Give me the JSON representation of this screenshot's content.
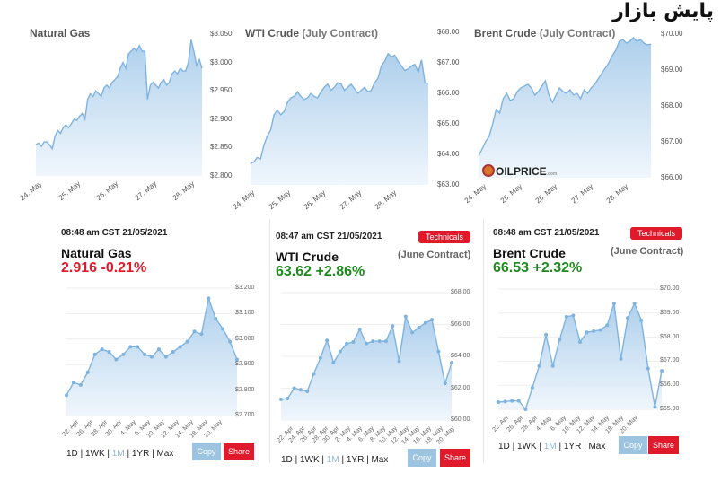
{
  "page": {
    "headline": "پایش بازار",
    "logo_text": "OILPRICE",
    "logo_suffix": ".com"
  },
  "colors": {
    "line": "#7fb3df",
    "fill_top": "#a9cdeb",
    "fill_bottom": "#eef5fc",
    "red": "#e0192b",
    "green": "#1f8b1f"
  },
  "chart_data": [
    {
      "type": "area",
      "title": "Natural Gas",
      "x_tick_labels": [
        "24. May",
        "25. May",
        "26. May",
        "27. May",
        "28. May"
      ],
      "y_tick_labels": [
        "$3.050",
        "$3.000",
        "$2.950",
        "$2.900",
        "$2.850",
        "$2.800"
      ],
      "ylim": [
        2.8,
        3.05
      ],
      "values": [
        2.855,
        2.858,
        2.852,
        2.86,
        2.86,
        2.855,
        2.848,
        2.87,
        2.88,
        2.875,
        2.885,
        2.89,
        2.885,
        2.892,
        2.9,
        2.898,
        2.905,
        2.91,
        2.9,
        2.935,
        2.945,
        2.94,
        2.95,
        2.945,
        2.94,
        2.955,
        2.96,
        2.955,
        2.965,
        2.97,
        2.975,
        2.99,
        3.0,
        2.99,
        3.015,
        3.02,
        3.025,
        3.02,
        3.03,
        3.02,
        3.02,
        2.935,
        2.96,
        2.965,
        2.96,
        2.955,
        2.965,
        2.97,
        2.96,
        2.965,
        2.98,
        2.985,
        2.98,
        2.99,
        2.985,
        2.985,
        3.0,
        3.04,
        3.02,
        2.995,
        3.005,
        2.99
      ]
    },
    {
      "type": "area",
      "title": "WTI Crude",
      "subtitle": "(July Contract)",
      "x_tick_labels": [
        "24. May",
        "25. May",
        "26. May",
        "27. May",
        "28. May"
      ],
      "y_tick_labels": [
        "$68.00",
        "$67.00",
        "$66.00",
        "$65.00",
        "$64.00",
        "$63.00"
      ],
      "ylim": [
        63,
        68
      ],
      "values": [
        63.7,
        63.75,
        63.9,
        63.85,
        64.3,
        64.6,
        64.8,
        65.3,
        65.45,
        65.3,
        65.4,
        65.7,
        65.85,
        65.9,
        66.05,
        65.9,
        65.8,
        65.85,
        66.0,
        65.9,
        65.85,
        66.05,
        66.2,
        66.3,
        66.1,
        66.2,
        66.35,
        66.3,
        66.1,
        66.2,
        66.3,
        66.15,
        66.0,
        66.1,
        66.2,
        66.05,
        66.1,
        66.35,
        66.5,
        66.9,
        67.05,
        67.3,
        67.2,
        67.25,
        67.05,
        66.9,
        66.75,
        66.8,
        66.9,
        66.95,
        66.7,
        67.1,
        66.35,
        66.32
      ]
    },
    {
      "type": "area",
      "title": "Brent Crude",
      "subtitle": "(July Contract)",
      "x_tick_labels": [
        "24. May",
        "25. May",
        "26. May",
        "27. May",
        "28. May"
      ],
      "y_tick_labels": [
        "$70.00",
        "$69.00",
        "$68.00",
        "$67.00",
        "$66.00"
      ],
      "ylim": [
        66,
        70
      ],
      "values": [
        66.6,
        66.8,
        67.0,
        67.15,
        67.5,
        67.9,
        67.8,
        68.2,
        68.35,
        68.15,
        68.2,
        68.4,
        68.5,
        68.55,
        68.6,
        68.5,
        68.3,
        68.4,
        68.55,
        68.7,
        68.3,
        68.1,
        68.3,
        68.5,
        68.4,
        68.35,
        68.45,
        68.3,
        68.35,
        68.2,
        68.45,
        68.35,
        68.5,
        68.6,
        68.75,
        68.9,
        69.05,
        69.2,
        69.4,
        69.55,
        69.8,
        69.85,
        69.75,
        69.8,
        69.9,
        69.8,
        69.85,
        69.75,
        69.7,
        69.72
      ]
    },
    {
      "type": "area",
      "title": "Natural Gas",
      "timestamp": "08:48 am CST 21/05/2021",
      "price": "2.916",
      "change": "-0.21%",
      "trend": "down",
      "x_tick_labels": [
        "22. Apr",
        "26. Apr",
        "28. Apr",
        "30. Apr",
        "4. May",
        "6. May",
        "10. May",
        "12. May",
        "14. May",
        "18. May",
        "20. May"
      ],
      "y_tick_labels": [
        "$3.200",
        "$3.100",
        "$3.000",
        "$2.900",
        "$2.800",
        "$2.700"
      ],
      "ylim": [
        2.7,
        3.2
      ],
      "values": [
        2.78,
        2.83,
        2.82,
        2.87,
        2.94,
        2.96,
        2.95,
        2.92,
        2.94,
        2.97,
        2.97,
        2.94,
        2.93,
        2.96,
        2.93,
        2.95,
        2.97,
        2.99,
        3.03,
        3.02,
        3.16,
        3.08,
        3.04,
        2.99,
        2.92
      ],
      "ranges": [
        "1D",
        "1WK",
        "1M",
        "1YR",
        "Max"
      ],
      "selected_range": "1M",
      "copy_label": "Copy",
      "share_label": "Share"
    },
    {
      "type": "area",
      "title": "WTI Crude",
      "contract": "(June Contract)",
      "timestamp": "08:47 am CST 21/05/2021",
      "technicals_label": "Technicals",
      "price": "63.62",
      "change": "+2.86%",
      "trend": "up",
      "x_tick_labels": [
        "22. Apr",
        "24. Apr",
        "26. Apr",
        "28. Apr",
        "30. Apr",
        "2. May",
        "4. May",
        "6. May",
        "8. May",
        "10. May",
        "12. May",
        "14. May",
        "16. May",
        "18. May",
        "20. May"
      ],
      "y_tick_labels": [
        "$68.00",
        "$66.00",
        "$64.00",
        "$62.00",
        "$60.00"
      ],
      "ylim": [
        60,
        68
      ],
      "values": [
        61.3,
        61.35,
        62.0,
        61.9,
        61.8,
        62.9,
        63.9,
        65.0,
        63.6,
        64.3,
        64.8,
        64.9,
        65.7,
        64.8,
        64.95,
        64.95,
        64.95,
        65.9,
        63.7,
        66.5,
        65.5,
        65.8,
        66.1,
        66.3,
        64.3,
        62.3,
        63.6
      ],
      "ranges": [
        "1D",
        "1WK",
        "1M",
        "1YR",
        "Max"
      ],
      "selected_range": "1M",
      "copy_label": "Copy",
      "share_label": "Share"
    },
    {
      "type": "area",
      "title": "Brent Crude",
      "contract": "(June Contract)",
      "timestamp": "08:48 am CST 21/05/2021",
      "technicals_label": "Technicals",
      "price": "66.53",
      "change": "+2.32%",
      "trend": "up",
      "x_tick_labels": [
        "22. Apr",
        "26. Apr",
        "28. Apr",
        "4. May",
        "6. May",
        "10. May",
        "12. May",
        "14. May",
        "18. May",
        "20. May"
      ],
      "y_tick_labels": [
        "$70.00",
        "$69.00",
        "$68.00",
        "$67.00",
        "$66.00",
        "$65.00"
      ],
      "ylim": [
        65,
        70
      ],
      "values": [
        65.3,
        65.32,
        65.35,
        65.35,
        65.0,
        65.9,
        66.8,
        68.1,
        66.8,
        67.9,
        68.85,
        68.9,
        67.8,
        68.2,
        68.25,
        68.3,
        68.5,
        69.4,
        67.1,
        68.8,
        69.4,
        68.7,
        66.7,
        65.1,
        66.6
      ],
      "ranges": [
        "1D",
        "1WK",
        "1M",
        "1YR",
        "Max"
      ],
      "selected_range": "1M",
      "copy_label": "Copy",
      "share_label": "Share"
    }
  ]
}
